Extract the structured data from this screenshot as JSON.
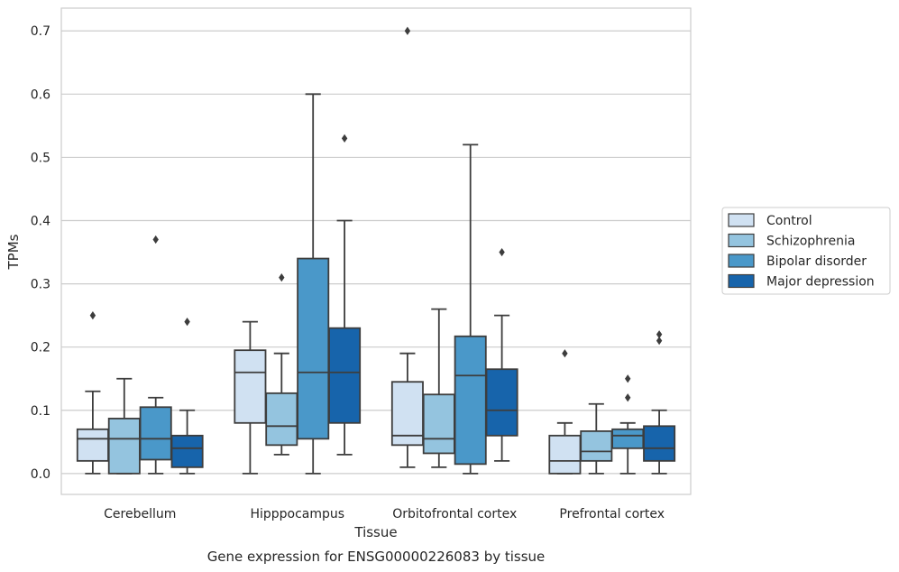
{
  "chart_data": {
    "type": "boxplot",
    "caption": "Gene expression for ENSG00000226083 by tissue",
    "xlabel": "Tissue",
    "ylabel": "TPMs",
    "ylim": [
      -0.033,
      0.736
    ],
    "yticks": [
      0.0,
      0.1,
      0.2,
      0.3,
      0.4,
      0.5,
      0.6,
      0.7
    ],
    "ytick_labels": [
      "0.0",
      "0.1",
      "0.2",
      "0.3",
      "0.4",
      "0.5",
      "0.6",
      "0.7"
    ],
    "grid": "horizontal",
    "legend_position": "right",
    "categories": [
      "Cerebellum",
      "Hipppocampus",
      "Orbitofrontal cortex",
      "Prefrontal cortex"
    ],
    "series": [
      {
        "name": "Control",
        "color": "#d0e1f2",
        "boxes": [
          {
            "whislo": 0.0,
            "q1": 0.02,
            "med": 0.055,
            "q3": 0.07,
            "whishi": 0.13,
            "fliers": [
              0.25
            ]
          },
          {
            "whislo": 0.0,
            "q1": 0.08,
            "med": 0.16,
            "q3": 0.195,
            "whishi": 0.24,
            "fliers": []
          },
          {
            "whislo": 0.01,
            "q1": 0.045,
            "med": 0.06,
            "q3": 0.145,
            "whishi": 0.19,
            "fliers": [
              0.7
            ]
          },
          {
            "whislo": 0.0,
            "q1": 0.0,
            "med": 0.02,
            "q3": 0.06,
            "whishi": 0.08,
            "fliers": [
              0.19
            ]
          }
        ]
      },
      {
        "name": "Schizophrenia",
        "color": "#94c4df",
        "boxes": [
          {
            "whislo": 0.0,
            "q1": 0.0,
            "med": 0.055,
            "q3": 0.087,
            "whishi": 0.15,
            "fliers": []
          },
          {
            "whislo": 0.03,
            "q1": 0.045,
            "med": 0.075,
            "q3": 0.127,
            "whishi": 0.19,
            "fliers": [
              0.31
            ]
          },
          {
            "whislo": 0.01,
            "q1": 0.032,
            "med": 0.055,
            "q3": 0.125,
            "whishi": 0.26,
            "fliers": []
          },
          {
            "whislo": 0.0,
            "q1": 0.02,
            "med": 0.035,
            "q3": 0.067,
            "whishi": 0.11,
            "fliers": []
          }
        ]
      },
      {
        "name": "Bipolar disorder",
        "color": "#4a98c9",
        "boxes": [
          {
            "whislo": 0.0,
            "q1": 0.022,
            "med": 0.055,
            "q3": 0.105,
            "whishi": 0.12,
            "fliers": [
              0.37
            ]
          },
          {
            "whislo": 0.0,
            "q1": 0.055,
            "med": 0.16,
            "q3": 0.34,
            "whishi": 0.6,
            "fliers": []
          },
          {
            "whislo": 0.0,
            "q1": 0.015,
            "med": 0.155,
            "q3": 0.217,
            "whishi": 0.52,
            "fliers": []
          },
          {
            "whislo": 0.0,
            "q1": 0.04,
            "med": 0.06,
            "q3": 0.07,
            "whishi": 0.08,
            "fliers": [
              0.12,
              0.15
            ]
          }
        ]
      },
      {
        "name": "Major depression",
        "color": "#1764ab",
        "boxes": [
          {
            "whislo": 0.0,
            "q1": 0.01,
            "med": 0.04,
            "q3": 0.06,
            "whishi": 0.1,
            "fliers": [
              0.24
            ]
          },
          {
            "whislo": 0.03,
            "q1": 0.08,
            "med": 0.16,
            "q3": 0.23,
            "whishi": 0.4,
            "fliers": [
              0.53
            ]
          },
          {
            "whislo": 0.02,
            "q1": 0.06,
            "med": 0.1,
            "q3": 0.165,
            "whishi": 0.25,
            "fliers": [
              0.35
            ]
          },
          {
            "whislo": 0.0,
            "q1": 0.02,
            "med": 0.04,
            "q3": 0.075,
            "whishi": 0.1,
            "fliers": [
              0.21,
              0.22
            ]
          }
        ]
      }
    ]
  }
}
